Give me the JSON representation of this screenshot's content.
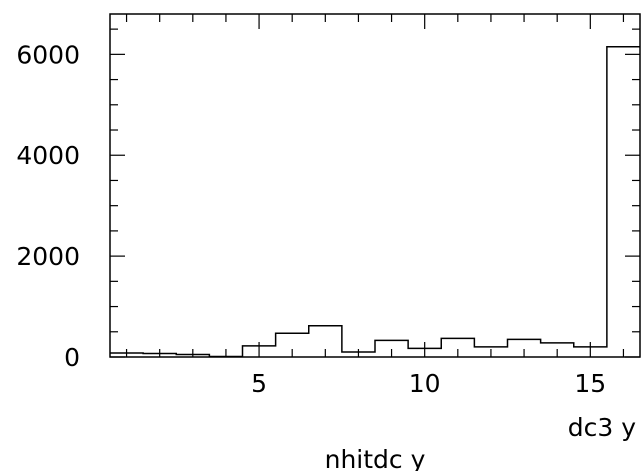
{
  "chart_data": {
    "type": "bar",
    "style": "step-histogram",
    "title": "",
    "xlabel": "nhitdc y",
    "axis_label": "dc3 y",
    "xlim": [
      0.5,
      16.5
    ],
    "ylim": [
      0,
      6800
    ],
    "x_ticks": [
      5,
      10,
      15
    ],
    "y_ticks": [
      0,
      2000,
      4000,
      6000
    ],
    "x_tick_labels": [
      "5",
      "10",
      "15"
    ],
    "y_tick_labels": [
      "0",
      "2000",
      "4000",
      "6000"
    ],
    "bin_width": 1,
    "bins": [
      1,
      2,
      3,
      4,
      5,
      6,
      7,
      8,
      9,
      10,
      11,
      12,
      13,
      14,
      15,
      16
    ],
    "values": [
      80,
      70,
      50,
      10,
      220,
      470,
      620,
      100,
      330,
      170,
      370,
      200,
      350,
      280,
      200,
      6150
    ],
    "grid": false,
    "line_color": "#000000"
  }
}
